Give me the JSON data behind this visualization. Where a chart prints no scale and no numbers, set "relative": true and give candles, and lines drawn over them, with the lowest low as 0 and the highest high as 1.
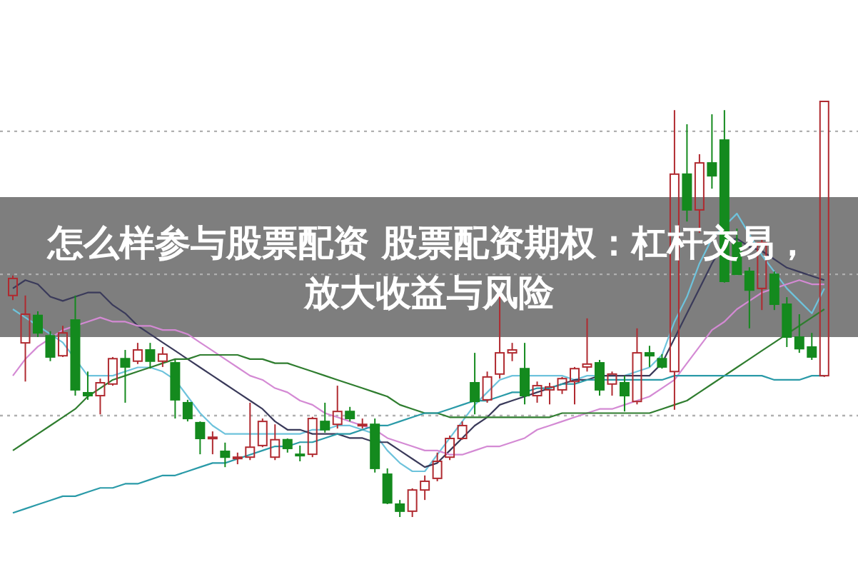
{
  "chart_data": {
    "type": "candlestick",
    "title": "怎么样参与股票配资 股票配资期权：杠杆交易，放大收益与风险",
    "relative": true,
    "categories": [
      null,
      null,
      null,
      null,
      null,
      null,
      null,
      null,
      null,
      null,
      null,
      null,
      null,
      null,
      null,
      null,
      null,
      null,
      null,
      null,
      null,
      null,
      null,
      null,
      null,
      null,
      null,
      null,
      null,
      null,
      null,
      null,
      null,
      null,
      null,
      null,
      null,
      null,
      null,
      null,
      null,
      null,
      null,
      null,
      null,
      null,
      null,
      null,
      null,
      null,
      null,
      null,
      null,
      null,
      null,
      null,
      null,
      null,
      null,
      null,
      null,
      null,
      null,
      null,
      null,
      null
    ],
    "ohlc": [
      [
        0.533,
        0.581,
        0.522,
        0.574
      ],
      [
        0.419,
        0.533,
        0.326,
        0.488
      ],
      [
        0.485,
        0.495,
        0.433,
        0.443
      ],
      [
        0.436,
        0.447,
        0.375,
        0.385
      ],
      [
        0.388,
        0.46,
        0.385,
        0.443
      ],
      [
        0.474,
        0.533,
        0.292,
        0.306
      ],
      [
        0.299,
        0.35,
        0.282,
        0.292
      ],
      [
        0.292,
        0.333,
        0.247,
        0.323
      ],
      [
        0.32,
        0.385,
        0.316,
        0.381
      ],
      [
        0.381,
        0.402,
        0.275,
        0.361
      ],
      [
        0.375,
        0.419,
        0.368,
        0.402
      ],
      [
        0.402,
        0.419,
        0.357,
        0.375
      ],
      [
        0.375,
        0.409,
        0.361,
        0.392
      ],
      [
        0.371,
        0.378,
        0.237,
        0.282
      ],
      [
        0.275,
        0.282,
        0.23,
        0.237
      ],
      [
        0.227,
        0.23,
        0.151,
        0.189
      ],
      [
        0.189,
        0.206,
        0.151,
        0.192
      ],
      [
        0.158,
        0.179,
        0.12,
        0.144
      ],
      [
        0.141,
        0.155,
        0.127,
        0.144
      ],
      [
        0.144,
        0.275,
        0.137,
        0.168
      ],
      [
        0.172,
        0.237,
        0.168,
        0.23
      ],
      [
        0.144,
        0.223,
        0.137,
        0.186
      ],
      [
        0.186,
        0.189,
        0.155,
        0.165
      ],
      [
        0.151,
        0.172,
        0.134,
        0.148
      ],
      [
        0.151,
        0.241,
        0.144,
        0.237
      ],
      [
        0.23,
        0.275,
        0.203,
        0.21
      ],
      [
        0.223,
        0.316,
        0.213,
        0.254
      ],
      [
        0.254,
        0.265,
        0.23,
        0.237
      ],
      [
        0.22,
        0.237,
        0.213,
        0.223
      ],
      [
        0.223,
        0.237,
        0.107,
        0.117
      ],
      [
        0.103,
        0.117,
        0.031,
        0.034
      ],
      [
        0.031,
        0.041,
        0,
        0.014
      ],
      [
        0.014,
        0.069,
        0,
        0.065
      ],
      [
        0.065,
        0.1,
        0.041,
        0.086
      ],
      [
        0.093,
        0.155,
        0.086,
        0.134
      ],
      [
        0.144,
        0.196,
        0.137,
        0.189
      ],
      [
        0.189,
        0.23,
        0.186,
        0.22
      ],
      [
        0.323,
        0.395,
        0.247,
        0.278
      ],
      [
        0.282,
        0.35,
        0.275,
        0.337
      ],
      [
        0.344,
        0.533,
        0.333,
        0.395
      ],
      [
        0.395,
        0.419,
        0.375,
        0.402
      ],
      [
        0.357,
        0.419,
        0.271,
        0.292
      ],
      [
        0.292,
        0.326,
        0.275,
        0.316
      ],
      [
        0.306,
        0.323,
        0.271,
        0.313
      ],
      [
        0.306,
        0.337,
        0.296,
        0.333
      ],
      [
        0.326,
        0.361,
        0.271,
        0.357
      ],
      [
        0.361,
        0.478,
        0.35,
        0.368
      ],
      [
        0.371,
        0.378,
        0.292,
        0.306
      ],
      [
        0.32,
        0.35,
        0.292,
        0.344
      ],
      [
        0.323,
        0.34,
        0.254,
        0.292
      ],
      [
        0.278,
        0.454,
        0.271,
        0.395
      ],
      [
        0.395,
        0.412,
        0.361,
        0.388
      ],
      [
        0.381,
        0.392,
        0.357,
        0.361
      ],
      [
        0.35,
        0.979,
        0.258,
        0.825
      ],
      [
        0.825,
        0.945,
        0.711,
        0.739
      ],
      [
        0.739,
        0.873,
        0.684,
        0.852
      ],
      [
        0.852,
        0.969,
        0.79,
        0.821
      ],
      [
        0.907,
        0.979,
        0.564,
        0.567
      ],
      [
        0.66,
        0.694,
        0.584,
        0.584
      ],
      [
        0.591,
        0.601,
        0.454,
        0.546
      ],
      [
        0.55,
        0.667,
        0.498,
        0.66
      ],
      [
        0.584,
        0.591,
        0.498,
        0.512
      ],
      [
        0.512,
        0.529,
        0.409,
        0.433
      ],
      [
        0.433,
        0.488,
        0.395,
        0.405
      ],
      [
        0.409,
        0.443,
        0.378,
        0.385
      ],
      [
        0.34,
        1,
        0.337,
        1
      ]
    ],
    "series": [
      {
        "type": "line",
        "color": "#6ec3dc",
        "values": [
          0.5,
          0.48,
          0.46,
          0.44,
          0.42,
          0.38,
          0.34,
          0.34,
          0.34,
          0.35,
          0.36,
          0.36,
          0.35,
          0.33,
          0.29,
          0.25,
          0.22,
          0.2,
          0.2,
          0.2,
          0.2,
          0.2,
          0.2,
          0.2,
          0.21,
          0.21,
          0.22,
          0.22,
          0.21,
          0.2,
          0.16,
          0.13,
          0.11,
          0.11,
          0.15,
          0.19,
          0.23,
          0.27,
          0.3,
          0.33,
          0.34,
          0.34,
          0.34,
          0.34,
          0.34,
          0.33,
          0.34,
          0.34,
          0.34,
          0.34,
          0.35,
          0.36,
          0.39,
          0.47,
          0.53,
          0.61,
          0.67,
          null,
          0.73,
          0.68,
          0.63,
          0.59,
          0.55,
          0.52,
          0.49,
          0.55
        ]
      },
      {
        "type": "line",
        "color": "#3a3a5a",
        "values": [
          0.55,
          0.57,
          0.56,
          0.53,
          0.52,
          0.53,
          0.54,
          0.54,
          0.51,
          0.49,
          0.46,
          0.44,
          0.42,
          0.4,
          0.38,
          0.36,
          0.34,
          0.32,
          0.3,
          0.28,
          0.26,
          0.23,
          0.21,
          0.21,
          0.2,
          0.2,
          0.2,
          0.19,
          0.19,
          0.18,
          0.18,
          0.16,
          0.14,
          0.12,
          0.13,
          0.16,
          0.19,
          0.22,
          0.24,
          0.27,
          0.28,
          0.29,
          0.3,
          0.31,
          0.32,
          0.33,
          0.33,
          0.34,
          0.34,
          0.34,
          0.34,
          0.34,
          0.37,
          0.43,
          0.49,
          0.55,
          0.61,
          0.66,
          0.67,
          0.65,
          0.64,
          0.62,
          0.6,
          0.59,
          0.58,
          0.57
        ]
      },
      {
        "type": "line",
        "color": "#d48ad4",
        "values": [
          0.34,
          0.38,
          0.41,
          0.43,
          0.45,
          null,
          0.47,
          0.48,
          0.47,
          0.47,
          0.46,
          0.46,
          0.45,
          0.45,
          0.44,
          0.42,
          0.4,
          0.38,
          0.36,
          0.34,
          0.33,
          0.31,
          0.3,
          0.28,
          0.27,
          0.25,
          0.24,
          0.23,
          0.22,
          0.21,
          0.19,
          0.18,
          0.17,
          0.16,
          0.16,
          0.15,
          0.15,
          0.16,
          0.17,
          0.17,
          0.18,
          0.19,
          0.21,
          0.22,
          0.23,
          0.24,
          0.25,
          0.26,
          0.26,
          0.27,
          0.28,
          0.29,
          0.31,
          0.33,
          0.37,
          0.41,
          0.45,
          0.47,
          0.5,
          0.52,
          0.54,
          0.55,
          0.56,
          0.57,
          0.56,
          0.56
        ]
      },
      {
        "type": "line",
        "color": "#2f7d2f",
        "values": [
          0.16,
          0.18,
          0.2,
          0.22,
          0.24,
          0.26,
          0.29,
          0.31,
          0.33,
          0.34,
          0.35,
          0.36,
          0.37,
          0.38,
          0.38,
          0.39,
          0.39,
          0.39,
          0.39,
          0.38,
          0.38,
          0.37,
          0.37,
          0.36,
          0.35,
          0.34,
          0.33,
          0.32,
          0.31,
          0.3,
          0.29,
          0.27,
          0.26,
          0.25,
          0.25,
          0.24,
          0.24,
          0.24,
          0.24,
          0.24,
          0.24,
          0.24,
          0.24,
          0.24,
          0.25,
          0.25,
          0.25,
          0.25,
          0.25,
          0.25,
          0.25,
          0.25,
          0.26,
          0.27,
          0.28,
          0.3,
          0.32,
          0.34,
          0.36,
          0.38,
          0.4,
          0.42,
          0.44,
          0.46,
          0.48,
          0.5
        ]
      },
      {
        "type": "line",
        "color": "#2a9aa8",
        "values": [
          0.01,
          0.02,
          0.03,
          0.04,
          0.05,
          0.05,
          0.06,
          0.07,
          0.07,
          0.08,
          0.08,
          0.09,
          0.1,
          0.1,
          0.11,
          0.12,
          0.13,
          0.13,
          0.14,
          0.15,
          0.16,
          0.17,
          0.17,
          0.18,
          0.18,
          0.19,
          0.2,
          0.2,
          0.21,
          0.22,
          0.22,
          0.23,
          0.24,
          0.25,
          0.25,
          0.26,
          0.27,
          0.28,
          0.28,
          0.29,
          0.3,
          0.3,
          0.31,
          0.31,
          0.32,
          0.32,
          0.33,
          0.33,
          0.33,
          0.33,
          0.33,
          0.33,
          0.33,
          0.34,
          0.34,
          0.34,
          0.34,
          0.34,
          0.34,
          0.34,
          0.34,
          0.33,
          0.33,
          0.33,
          0.34,
          0.34
        ]
      }
    ],
    "ref_lines": [
      {
        "axis": "y",
        "value": 0.928,
        "color": "#b0b0b0",
        "line_style": "dotted"
      },
      {
        "axis": "y",
        "value": 0.584,
        "color": "#b0b0b0",
        "line_style": "dotted"
      },
      {
        "axis": "y",
        "value": 0.244,
        "color": "#b0b0b0",
        "line_style": "dotted"
      }
    ]
  }
}
